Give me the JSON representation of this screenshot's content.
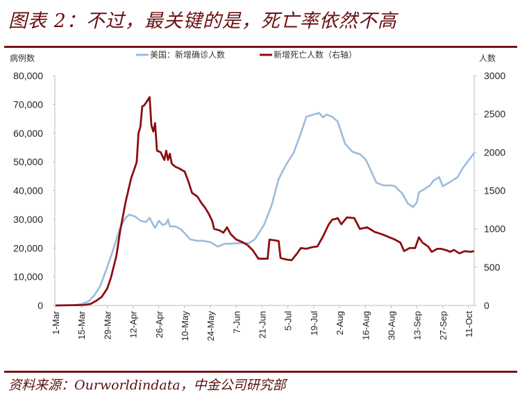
{
  "title": "图表 2：不过，最关键的是，死亡率依然不高",
  "source": "资料来源：Ourworldindata，中金公司研究部",
  "colors": {
    "cases": "#9bbbdd",
    "deaths": "#8b0e10",
    "rule": "#7a1416",
    "title": "#6b0f12"
  },
  "chart_data": {
    "type": "line",
    "title": "图表 2：不过，最关键的是，死亡率依然不高",
    "x_unit": "days since 1-Mar",
    "xlim": [
      0,
      227
    ],
    "x_ticks": [
      {
        "day": 0,
        "label": "1-Mar"
      },
      {
        "day": 14,
        "label": "15-Mar"
      },
      {
        "day": 28,
        "label": "29-Mar"
      },
      {
        "day": 42,
        "label": "12-Apr"
      },
      {
        "day": 56,
        "label": "26-Apr"
      },
      {
        "day": 70,
        "label": "10-May"
      },
      {
        "day": 84,
        "label": "24-May"
      },
      {
        "day": 98,
        "label": "7-Jun"
      },
      {
        "day": 112,
        "label": "21-Jun"
      },
      {
        "day": 126,
        "label": "5-Jul"
      },
      {
        "day": 140,
        "label": "19-Jul"
      },
      {
        "day": 154,
        "label": "2-Aug"
      },
      {
        "day": 168,
        "label": "16-Aug"
      },
      {
        "day": 182,
        "label": "30-Aug"
      },
      {
        "day": 196,
        "label": "13-Sep"
      },
      {
        "day": 210,
        "label": "27-Sep"
      },
      {
        "day": 224,
        "label": "11-Oct"
      }
    ],
    "ylabel_left": "病例数",
    "ylabel_right": "人数",
    "ylim_left": [
      0,
      80000
    ],
    "ylim_right": [
      0,
      3000
    ],
    "yticks_left": [
      "0",
      "10,000",
      "20,000",
      "30,000",
      "40,000",
      "50,000",
      "60,000",
      "70,000",
      "80,000"
    ],
    "yticks_left_values": [
      0,
      10000,
      20000,
      30000,
      40000,
      50000,
      60000,
      70000,
      80000
    ],
    "yticks_right": [
      "0",
      "500",
      "1000",
      "1500",
      "2000",
      "2500",
      "3000"
    ],
    "yticks_right_values": [
      0,
      500,
      1000,
      1500,
      2000,
      2500,
      3000
    ],
    "legend": [
      "美国：新增确诊人数",
      "新增死亡人数（右轴）"
    ],
    "legend_position": "top-center",
    "grid": false,
    "series": [
      {
        "name": "美国：新增确诊人数",
        "axis": "left",
        "points": [
          [
            0,
            0
          ],
          [
            10,
            100
          ],
          [
            14,
            500
          ],
          [
            18,
            1500
          ],
          [
            21,
            3500
          ],
          [
            24,
            6500
          ],
          [
            27,
            11500
          ],
          [
            30,
            17000
          ],
          [
            33,
            23000
          ],
          [
            35,
            27000
          ],
          [
            38,
            30500
          ],
          [
            40,
            31600
          ],
          [
            43,
            31000
          ],
          [
            46,
            29500
          ],
          [
            49,
            29000
          ],
          [
            51,
            30500
          ],
          [
            53,
            28000
          ],
          [
            54,
            27000
          ],
          [
            56,
            29500
          ],
          [
            58,
            28000
          ],
          [
            60,
            28500
          ],
          [
            61,
            30000
          ],
          [
            62,
            27500
          ],
          [
            65,
            27500
          ],
          [
            68,
            26500
          ],
          [
            71,
            24500
          ],
          [
            73,
            23000
          ],
          [
            77,
            22500
          ],
          [
            80,
            22500
          ],
          [
            84,
            22000
          ],
          [
            88,
            20500
          ],
          [
            92,
            21500
          ],
          [
            95,
            21500
          ],
          [
            100,
            21700
          ],
          [
            105,
            21700
          ],
          [
            108,
            23000
          ],
          [
            110,
            25000
          ],
          [
            113,
            28000
          ],
          [
            117,
            34500
          ],
          [
            121,
            44000
          ],
          [
            125,
            49000
          ],
          [
            129,
            53000
          ],
          [
            133,
            60000
          ],
          [
            136,
            65700
          ],
          [
            140,
            66500
          ],
          [
            143,
            67000
          ],
          [
            145,
            65500
          ],
          [
            147,
            66500
          ],
          [
            150,
            65700
          ],
          [
            153,
            64000
          ],
          [
            157,
            56300
          ],
          [
            161,
            53500
          ],
          [
            165,
            52700
          ],
          [
            168,
            51000
          ],
          [
            171,
            47000
          ],
          [
            174,
            42700
          ],
          [
            178,
            41800
          ],
          [
            182,
            41800
          ],
          [
            184,
            41500
          ],
          [
            188,
            39000
          ],
          [
            191,
            35500
          ],
          [
            194,
            34300
          ],
          [
            196,
            36000
          ],
          [
            197,
            39400
          ],
          [
            200,
            40500
          ],
          [
            203,
            41800
          ],
          [
            205,
            43500
          ],
          [
            208,
            44700
          ],
          [
            210,
            41500
          ],
          [
            214,
            43000
          ],
          [
            218,
            44700
          ],
          [
            221,
            48000
          ],
          [
            224,
            50500
          ],
          [
            227,
            53100
          ]
        ]
      },
      {
        "name": "新增死亡人数（右轴）",
        "axis": "right",
        "points": [
          [
            0,
            0
          ],
          [
            15,
            5
          ],
          [
            19,
            20
          ],
          [
            22,
            60
          ],
          [
            25,
            110
          ],
          [
            28,
            220
          ],
          [
            30,
            360
          ],
          [
            33,
            650
          ],
          [
            35,
            970
          ],
          [
            38,
            1350
          ],
          [
            41,
            1660
          ],
          [
            43,
            1800
          ],
          [
            44,
            1870
          ],
          [
            45,
            2250
          ],
          [
            46,
            2330
          ],
          [
            47,
            2600
          ],
          [
            48,
            2610
          ],
          [
            50,
            2680
          ],
          [
            51,
            2720
          ],
          [
            52,
            2350
          ],
          [
            53,
            2270
          ],
          [
            54,
            2380
          ],
          [
            55,
            2020
          ],
          [
            57,
            2000
          ],
          [
            59,
            1900
          ],
          [
            60,
            2020
          ],
          [
            61,
            1900
          ],
          [
            62,
            1980
          ],
          [
            63,
            1850
          ],
          [
            65,
            1810
          ],
          [
            67,
            1790
          ],
          [
            69,
            1760
          ],
          [
            70,
            1750
          ],
          [
            72,
            1620
          ],
          [
            74,
            1470
          ],
          [
            77,
            1420
          ],
          [
            79,
            1340
          ],
          [
            81,
            1280
          ],
          [
            83,
            1200
          ],
          [
            85,
            1100
          ],
          [
            86,
            1000
          ],
          [
            89,
            980
          ],
          [
            91,
            950
          ],
          [
            93,
            1020
          ],
          [
            95,
            930
          ],
          [
            98,
            860
          ],
          [
            101,
            830
          ],
          [
            104,
            790
          ],
          [
            107,
            720
          ],
          [
            110,
            610
          ],
          [
            113,
            610
          ],
          [
            115,
            610
          ],
          [
            116,
            860
          ],
          [
            119,
            850
          ],
          [
            121,
            840
          ],
          [
            122,
            620
          ],
          [
            125,
            600
          ],
          [
            128,
            590
          ],
          [
            131,
            680
          ],
          [
            133,
            750
          ],
          [
            136,
            740
          ],
          [
            139,
            760
          ],
          [
            142,
            770
          ],
          [
            145,
            900
          ],
          [
            148,
            1050
          ],
          [
            150,
            1120
          ],
          [
            152,
            1130
          ],
          [
            153,
            1140
          ],
          [
            155,
            1060
          ],
          [
            158,
            1150
          ],
          [
            162,
            1140
          ],
          [
            165,
            1000
          ],
          [
            169,
            1020
          ],
          [
            173,
            960
          ],
          [
            177,
            930
          ],
          [
            181,
            890
          ],
          [
            184,
            860
          ],
          [
            187,
            820
          ],
          [
            189,
            710
          ],
          [
            192,
            750
          ],
          [
            195,
            750
          ],
          [
            197,
            890
          ],
          [
            199,
            820
          ],
          [
            202,
            770
          ],
          [
            204,
            700
          ],
          [
            207,
            740
          ],
          [
            209,
            740
          ],
          [
            212,
            720
          ],
          [
            214,
            700
          ],
          [
            216,
            725
          ],
          [
            219,
            680
          ],
          [
            222,
            710
          ],
          [
            225,
            700
          ],
          [
            227,
            710
          ]
        ]
      }
    ]
  }
}
